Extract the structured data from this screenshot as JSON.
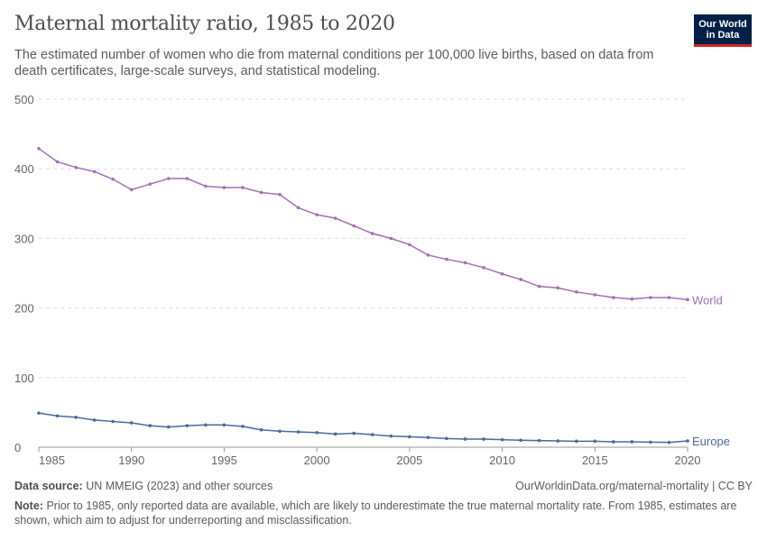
{
  "header": {
    "title": "Maternal mortality ratio, 1985 to 2020",
    "subtitle": "The estimated number of women who die from maternal conditions per 100,000 live births, based on data from death certificates, large-scale surveys, and statistical modeling.",
    "logo_text": "Our World in Data"
  },
  "footer": {
    "source_label": "Data source:",
    "source": "UN MMEIG (2023) and other sources",
    "url": "OurWorldinData.org/maternal-mortality | CC BY",
    "note_label": "Note:",
    "note": "Prior to 1985, only reported data are available, which are likely to underestimate the true maternal mortality rate. From 1985, estimates are shown, which aim to adjust for underreporting and misclassification."
  },
  "chart_data": {
    "type": "line",
    "title": "Maternal mortality ratio, 1985 to 2020",
    "xlabel": "",
    "ylabel": "",
    "xlim": [
      1985,
      2020
    ],
    "ylim": [
      0,
      500
    ],
    "grid": true,
    "legend": "end-of-line labels",
    "x_ticks": [
      "1985",
      "1990",
      "1995",
      "2000",
      "2005",
      "2010",
      "2015",
      "2020"
    ],
    "y_ticks": [
      "0",
      "100",
      "200",
      "300",
      "400",
      "500"
    ],
    "x": [
      1985,
      1986,
      1987,
      1988,
      1989,
      1990,
      1991,
      1992,
      1993,
      1994,
      1995,
      1996,
      1997,
      1998,
      1999,
      2000,
      2001,
      2002,
      2003,
      2004,
      2005,
      2006,
      2007,
      2008,
      2009,
      2010,
      2011,
      2012,
      2013,
      2014,
      2015,
      2016,
      2017,
      2018,
      2019,
      2020
    ],
    "series": [
      {
        "name": "World",
        "color": "#a36fb3",
        "values": [
          429,
          410,
          402,
          396,
          385,
          370,
          378,
          386,
          386,
          375,
          373,
          373,
          366,
          363,
          344,
          334,
          329,
          318,
          307,
          300,
          291,
          276,
          270,
          265,
          258,
          249,
          241,
          231,
          229,
          223,
          219,
          215,
          213,
          215,
          215,
          212
        ]
      },
      {
        "name": "Europe",
        "color": "#4c6a9c",
        "values": [
          49,
          45,
          43,
          39,
          37,
          35,
          31,
          29,
          31,
          32,
          32,
          30,
          25,
          23,
          22,
          21,
          19,
          20,
          18,
          16,
          15,
          14,
          12.5,
          11.7,
          11.7,
          10.8,
          10,
          9.5,
          9,
          8.6,
          8.6,
          7.8,
          7.8,
          7.3,
          6.9,
          9
        ]
      }
    ]
  }
}
